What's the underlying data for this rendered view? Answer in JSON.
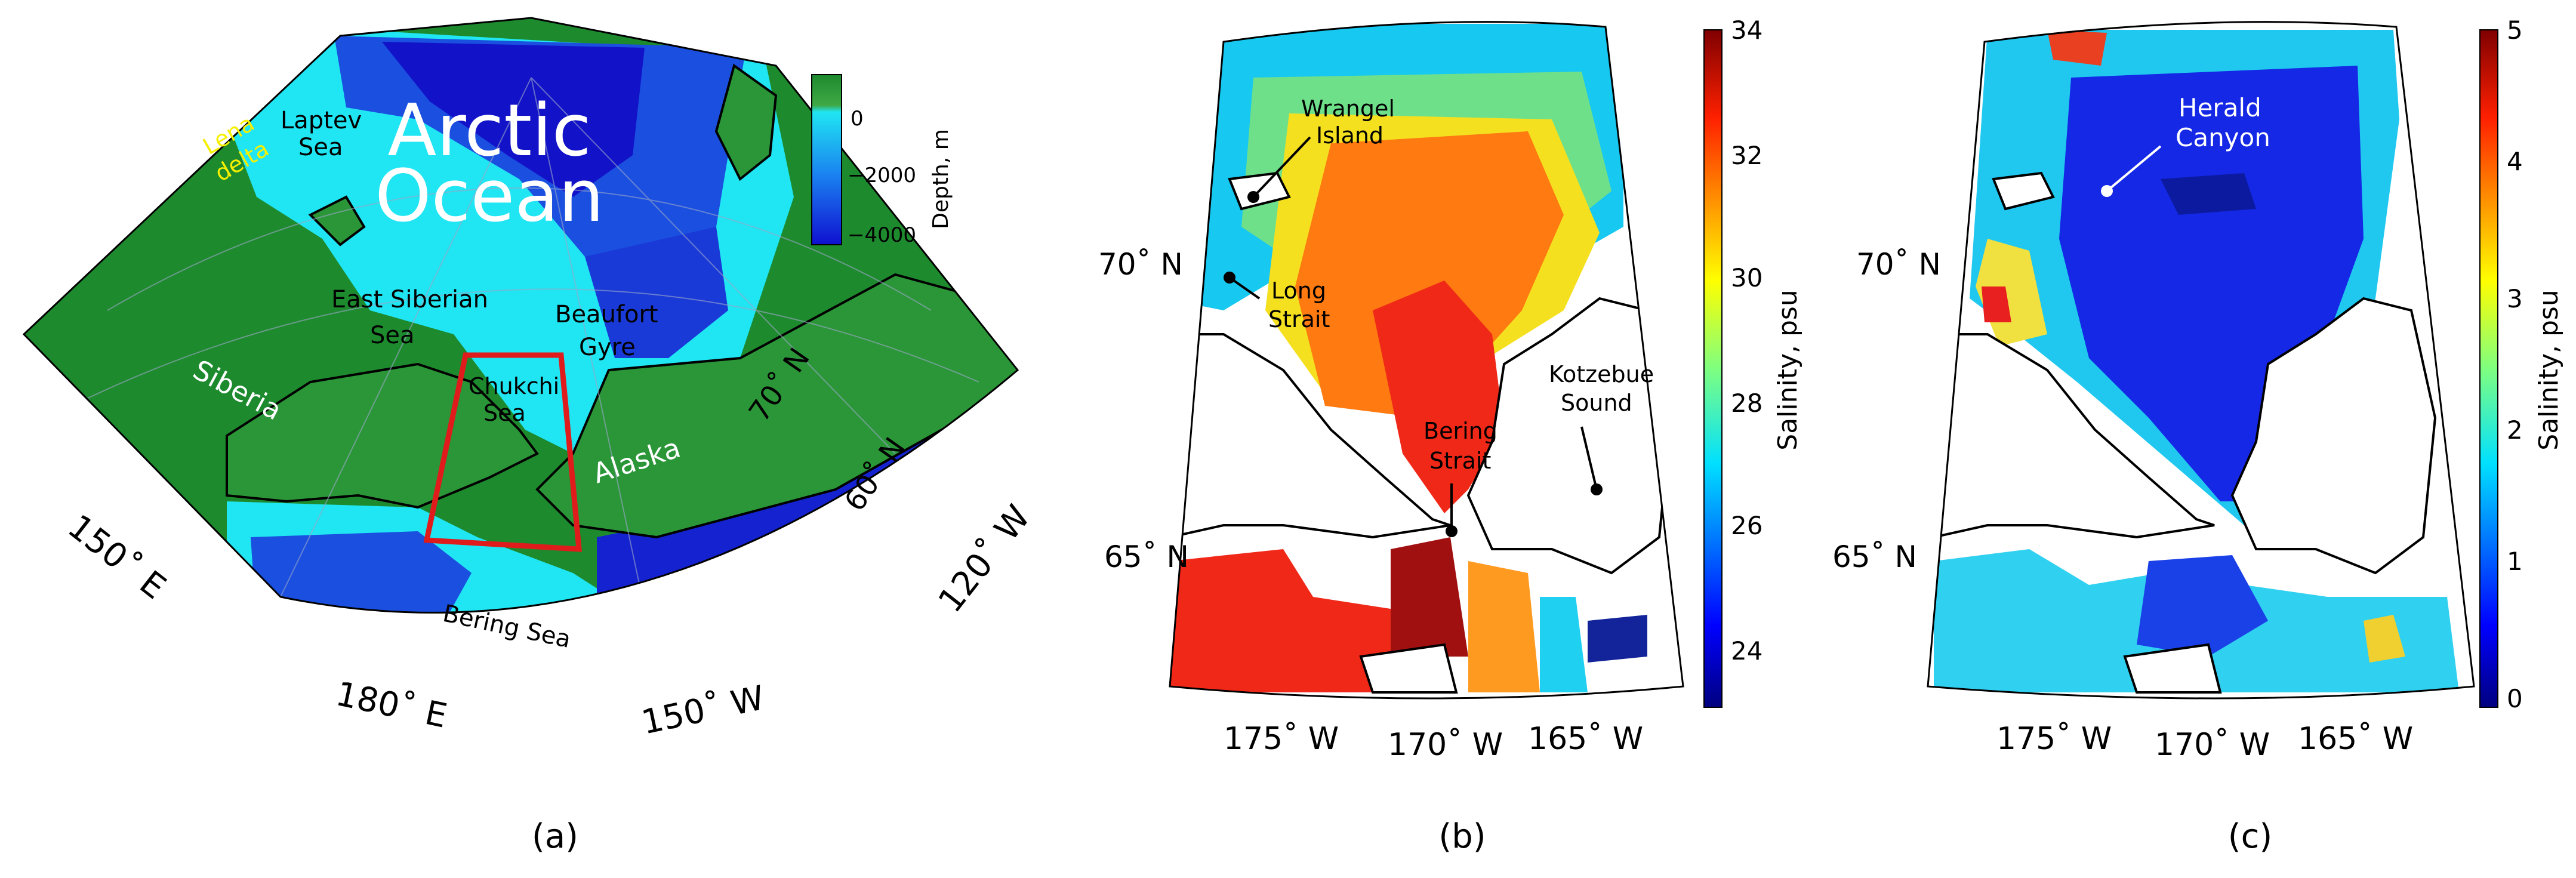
{
  "panels": {
    "a": {
      "label": "(a)",
      "title_line1": "Arctic",
      "title_line2": "Ocean",
      "places": {
        "lena_1": "Lena",
        "lena_2": "delta",
        "laptev_1": "Laptev",
        "laptev_2": "Sea",
        "esib_1": "East Siberian",
        "esib_2": "Sea",
        "siberia": "Siberia",
        "chukchi_1": "Chukchi",
        "chukchi_2": "Sea",
        "beaufort_1": "Beaufort",
        "beaufort_2": "Gyre",
        "alaska": "Alaska",
        "bering": "Bering Sea"
      },
      "lat_labels": {
        "l70": "70˚ N",
        "l60": "60˚ N"
      },
      "lon_labels": {
        "e150": "150˚ E",
        "e180": "180˚ E",
        "w150": "150˚ W",
        "w120": "120˚ W"
      },
      "colorbar": {
        "label": "Depth, m",
        "ticks": [
          "0",
          "−2000",
          "−4000"
        ]
      },
      "colors": {
        "land": "#1e8a2e",
        "shelf": "#20e5f2",
        "deep": "#1022d8",
        "box": "#e01b1b"
      }
    },
    "b": {
      "label": "(b)",
      "places": {
        "wrangel_1": "Wrangel",
        "wrangel_2": "Island",
        "long_1": "Long",
        "long_2": "Strait",
        "kotzebue_1": "Kotzebue",
        "kotzebue_2": "Sound",
        "bering_1": "Bering",
        "bering_2": "Strait"
      },
      "lat_labels": {
        "l70": "70˚ N",
        "l65": "65˚ N"
      },
      "lon_labels": {
        "w175": "175˚ W",
        "w170": "170˚ W",
        "w165": "165˚ W"
      },
      "colorbar": {
        "label": "Salinity, psu",
        "ticks": [
          "34",
          "32",
          "30",
          "28",
          "26",
          "24"
        ],
        "range": [
          23,
          34
        ]
      },
      "colors": {
        "high": "#a01010",
        "mid": "#ff7a10",
        "low": "#13239a"
      }
    },
    "c": {
      "label": "(c)",
      "places": {
        "herald_1": "Herald",
        "herald_2": "Canyon"
      },
      "lat_labels": {
        "l70": "70˚ N",
        "l65": "65˚ N"
      },
      "lon_labels": {
        "w175": "175˚ W",
        "w170": "170˚ W",
        "w165": "165˚ W"
      },
      "colorbar": {
        "label": "Salinity, psu",
        "ticks": [
          "5",
          "4",
          "3",
          "2",
          "1",
          "0"
        ],
        "range": [
          0,
          5
        ]
      },
      "colors": {
        "low": "#1428e6",
        "high": "#b01010"
      }
    }
  }
}
